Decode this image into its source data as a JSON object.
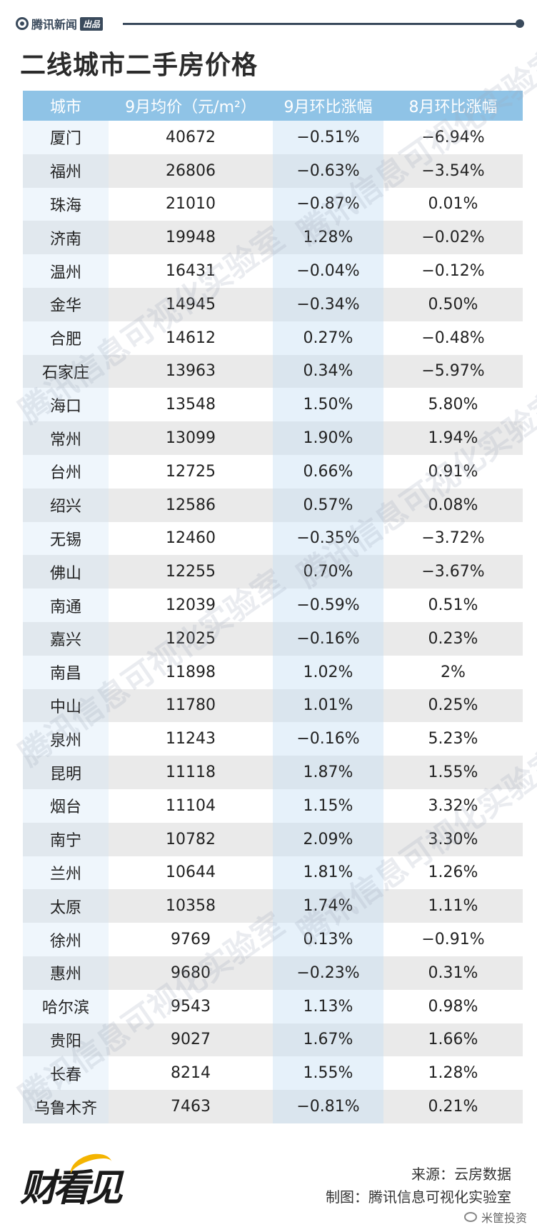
{
  "brand": {
    "name": "腾讯新闻",
    "badge": "出品"
  },
  "title": "二线城市二手房价格",
  "table": {
    "headers": [
      "城市",
      "9月均价（元/m²）",
      "9月环比涨幅",
      "8月环比涨幅"
    ],
    "rows": [
      [
        "厦门",
        "40672",
        "−0.51%",
        "−6.94%"
      ],
      [
        "福州",
        "26806",
        "−0.63%",
        "−3.54%"
      ],
      [
        "珠海",
        "21010",
        "−0.87%",
        "0.01%"
      ],
      [
        "济南",
        "19948",
        "1.28%",
        "−0.02%"
      ],
      [
        "温州",
        "16431",
        "−0.04%",
        "−0.12%"
      ],
      [
        "金华",
        "14945",
        "−0.34%",
        "0.50%"
      ],
      [
        "合肥",
        "14612",
        "0.27%",
        "−0.48%"
      ],
      [
        "石家庄",
        "13963",
        "0.34%",
        "−5.97%"
      ],
      [
        "海口",
        "13548",
        "1.50%",
        "5.80%"
      ],
      [
        "常州",
        "13099",
        "1.90%",
        "1.94%"
      ],
      [
        "台州",
        "12725",
        "0.66%",
        "0.91%"
      ],
      [
        "绍兴",
        "12586",
        "0.57%",
        "0.08%"
      ],
      [
        "无锡",
        "12460",
        "−0.35%",
        "−3.72%"
      ],
      [
        "佛山",
        "12255",
        "0.70%",
        "−3.67%"
      ],
      [
        "南通",
        "12039",
        "−0.59%",
        "0.51%"
      ],
      [
        "嘉兴",
        "12025",
        "−0.16%",
        "0.23%"
      ],
      [
        "南昌",
        "11898",
        "1.02%",
        "2%"
      ],
      [
        "中山",
        "11780",
        "1.01%",
        "0.25%"
      ],
      [
        "泉州",
        "11243",
        "−0.16%",
        "5.23%"
      ],
      [
        "昆明",
        "11118",
        "1.87%",
        "1.55%"
      ],
      [
        "烟台",
        "11104",
        "1.15%",
        "3.32%"
      ],
      [
        "南宁",
        "10782",
        "2.09%",
        "3.30%"
      ],
      [
        "兰州",
        "10644",
        "1.81%",
        "1.26%"
      ],
      [
        "太原",
        "10358",
        "1.74%",
        "1.11%"
      ],
      [
        "徐州",
        "9769",
        "0.13%",
        "−0.91%"
      ],
      [
        "惠州",
        "9680",
        "−0.23%",
        "0.31%"
      ],
      [
        "哈尔滨",
        "9543",
        "1.13%",
        "0.98%"
      ],
      [
        "贵阳",
        "9027",
        "1.67%",
        "1.66%"
      ],
      [
        "长春",
        "8214",
        "1.55%",
        "1.28%"
      ],
      [
        "乌鲁木齐",
        "7463",
        "−0.81%",
        "0.21%"
      ]
    ]
  },
  "watermark_text": "腾讯信息可视化实验室",
  "footer": {
    "logo_text": "财看见",
    "source": "来源：云房数据",
    "made_by": "制图：腾讯信息可视化实验室",
    "wechat_account": "米筐投资"
  },
  "colors": {
    "header_bg": "#8fc3e6",
    "stripe": "#eaeaea",
    "brand": "#3a4a5c"
  }
}
